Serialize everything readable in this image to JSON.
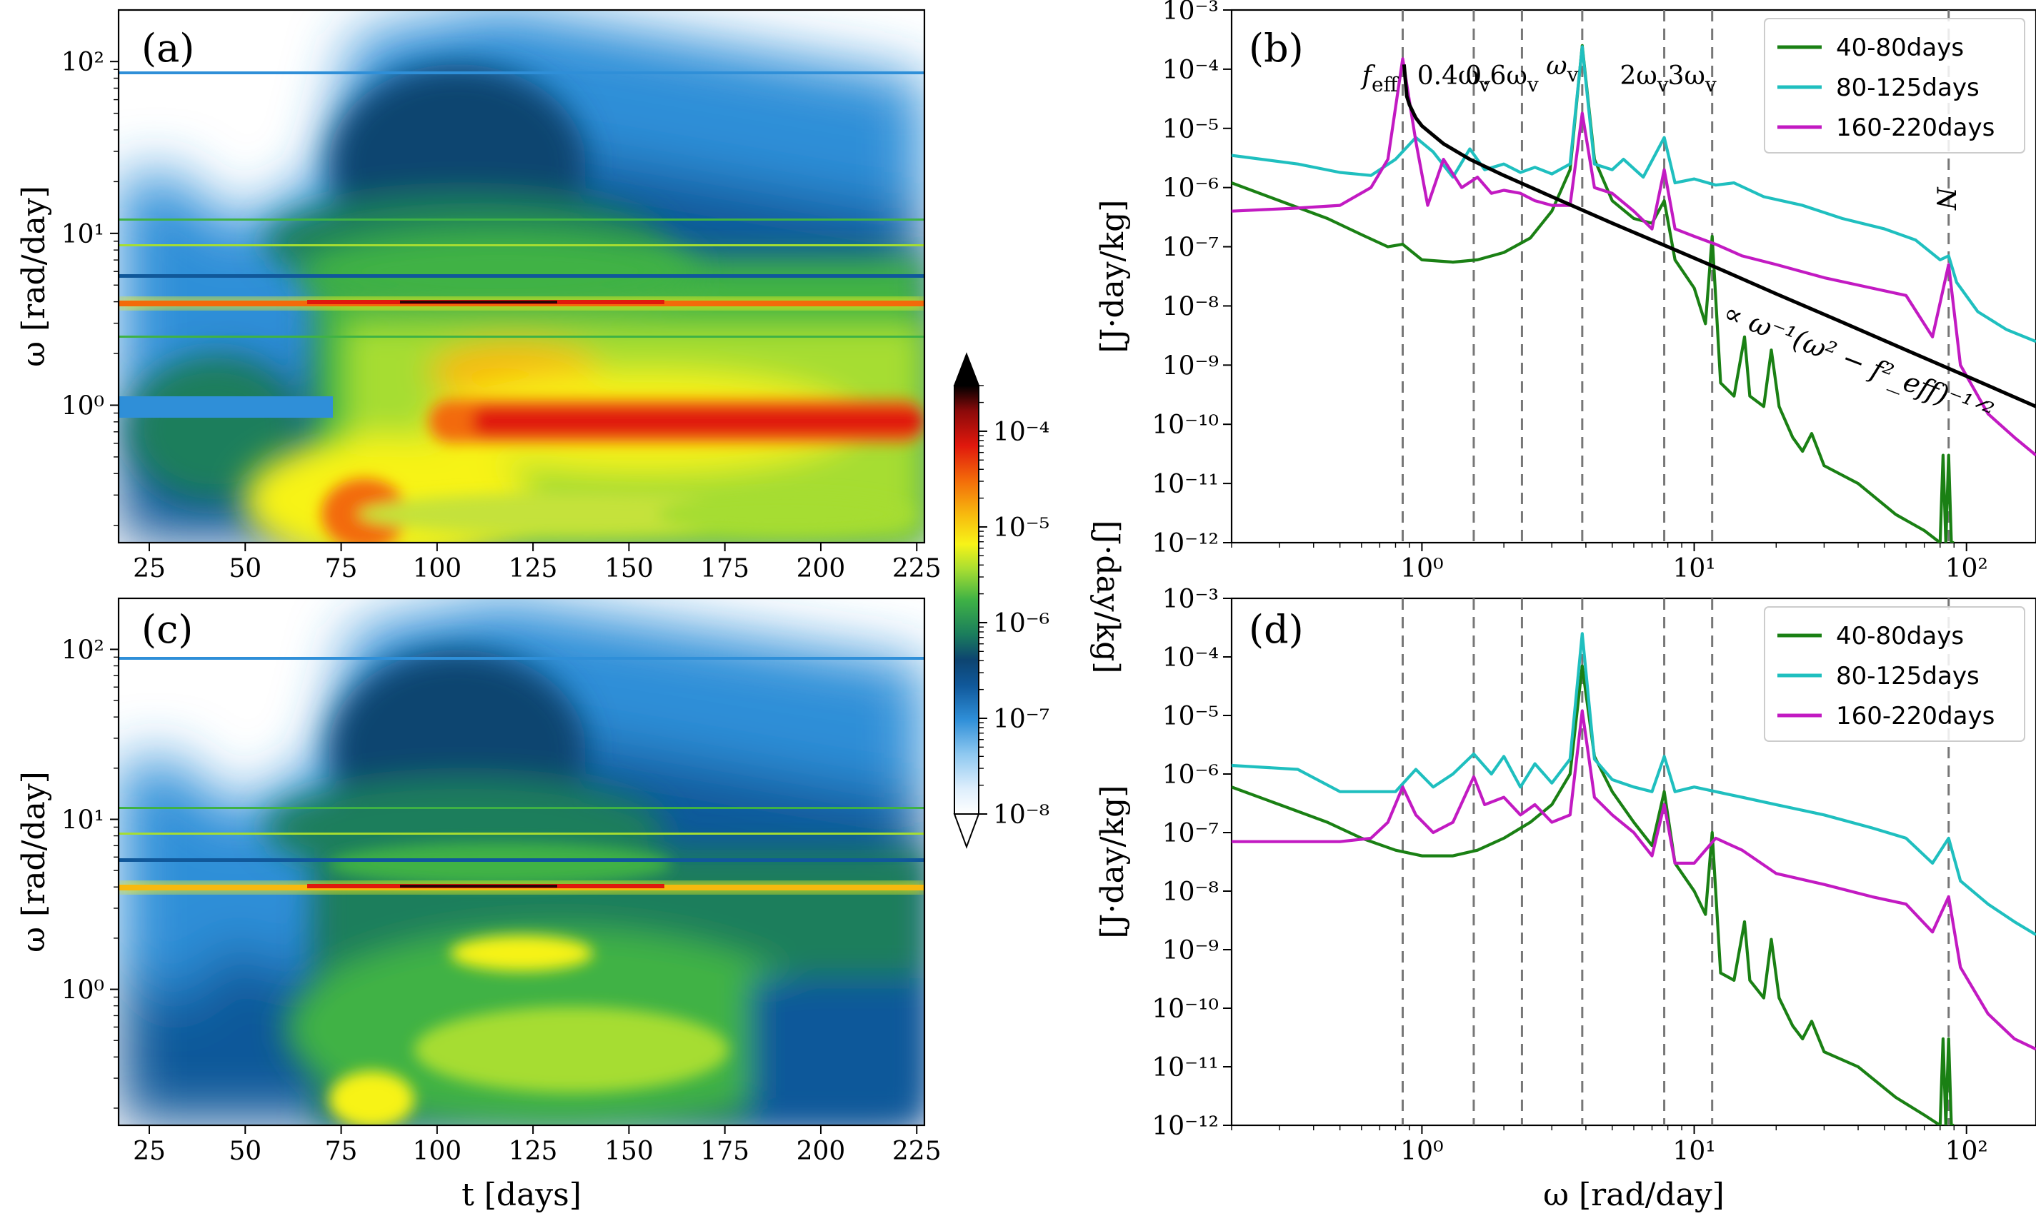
{
  "panel_labels": {
    "a": "(a)",
    "b": "(b)",
    "c": "(c)",
    "d": "(d)"
  },
  "colorbar": {
    "title": "[J·day/kg]",
    "tick_labels": [
      "10⁻⁸",
      "10⁻⁷",
      "10⁻⁶",
      "10⁻⁵",
      "10⁻⁴"
    ],
    "colors": [
      "#ffffff",
      "#ddeefc",
      "#8ec8f0",
      "#2f8fd8",
      "#10589a",
      "#0d4470",
      "#1b7e5c",
      "#3fb245",
      "#a6dd32",
      "#f7f318",
      "#f7b90e",
      "#f36a0a",
      "#e0180d",
      "#8c0a0a",
      "#000000"
    ]
  },
  "chart_data": [
    {
      "panel": "(a)",
      "type": "heatmap",
      "xlabel": "t [days]",
      "ylabel": "ω [rad/day]",
      "x_ticks": [
        "25",
        "50",
        "75",
        "100",
        "125",
        "150",
        "175",
        "200",
        "225"
      ],
      "y_ticks": [
        "10⁰",
        "10¹",
        "10²"
      ],
      "xlim": [
        17,
        227
      ],
      "ylim_log10": [
        -0.8,
        2.3
      ],
      "color_scale": "log",
      "clim": [
        1e-08,
        0.0003
      ]
    },
    {
      "panel": "(c)",
      "type": "heatmap",
      "xlabel": "t [days]",
      "ylabel": "ω [rad/day]",
      "x_ticks": [
        "25",
        "50",
        "75",
        "100",
        "125",
        "150",
        "175",
        "200",
        "225"
      ],
      "y_ticks": [
        "10⁰",
        "10¹",
        "10²"
      ],
      "xlim": [
        17,
        227
      ],
      "ylim_log10": [
        -0.8,
        2.3
      ],
      "color_scale": "log",
      "clim": [
        1e-08,
        0.0003
      ]
    },
    {
      "panel": "(b)",
      "type": "line",
      "xlabel": "",
      "ylabel": "[J·day/kg]",
      "x_scale": "log",
      "y_scale": "log",
      "xlim": [
        0.2,
        180
      ],
      "ylim": [
        1e-12,
        0.001
      ],
      "x_ticks": [
        "10⁰",
        "10¹",
        "10²"
      ],
      "y_ticks": [
        "10⁻¹²",
        "10⁻¹¹",
        "10⁻¹⁰",
        "10⁻⁹",
        "10⁻⁸",
        "10⁻⁷",
        "10⁻⁶",
        "10⁻⁵",
        "10⁻⁴",
        "10⁻³"
      ],
      "legend": "top-right",
      "vlines": [
        {
          "x": 0.85,
          "label": "f_eff"
        },
        {
          "x": 1.55,
          "label": "0.4ω_v"
        },
        {
          "x": 2.33,
          "label": "0.6ω_v"
        },
        {
          "x": 3.88,
          "label": "ω_v"
        },
        {
          "x": 7.76,
          "label": "2ω_v"
        },
        {
          "x": 11.64,
          "label": "3ω_v"
        },
        {
          "x": 86,
          "label": "N"
        }
      ],
      "annotation": "∝ ω⁻¹(ω² − f²_eff)⁻¹ᐟ²",
      "series": [
        {
          "name": "40-80days",
          "color": "#1a8014",
          "x": [
            0.2,
            0.3,
            0.45,
            0.6,
            0.75,
            0.85,
            1.0,
            1.3,
            1.6,
            2.0,
            2.5,
            3.0,
            3.5,
            3.88,
            4.3,
            5.0,
            6.0,
            7.0,
            7.76,
            8.5,
            10,
            11,
            11.64,
            12.5,
            14,
            15.3,
            16,
            18,
            19.2,
            20.5,
            23,
            25,
            27,
            30,
            40,
            55,
            70,
            80,
            82,
            84,
            86,
            88,
            90
          ],
          "y": [
            1.2e-06,
            6e-07,
            3e-07,
            1.6e-07,
            1e-07,
            1.1e-07,
            6e-08,
            5.5e-08,
            6e-08,
            8e-08,
            1.4e-07,
            4e-07,
            2e-06,
            0.00025,
            3e-06,
            6e-07,
            3e-07,
            2.5e-07,
            6e-07,
            6e-08,
            2e-08,
            5e-09,
            1.5e-07,
            5e-10,
            3e-10,
            3e-09,
            3e-10,
            2e-10,
            1.8e-09,
            2e-10,
            6e-11,
            3.5e-11,
            7e-11,
            2e-11,
            1e-11,
            3e-12,
            1.6e-12,
            1e-12,
            3e-11,
            1e-12,
            3e-11,
            1e-12,
            1e-12
          ]
        },
        {
          "name": "80-125days",
          "color": "#1fbfbf",
          "x": [
            0.2,
            0.35,
            0.5,
            0.65,
            0.8,
            0.95,
            1.1,
            1.3,
            1.5,
            1.7,
            2.0,
            2.3,
            2.6,
            3.0,
            3.5,
            3.88,
            4.3,
            5.0,
            5.5,
            6.5,
            7.76,
            8.5,
            10,
            12,
            14,
            18,
            25,
            35,
            50,
            65,
            80,
            86,
            92,
            110,
            140,
            180
          ],
          "y": [
            3.5e-06,
            2.5e-06,
            1.8e-06,
            1.6e-06,
            3e-06,
            7e-06,
            4e-06,
            1.5e-06,
            4.5e-06,
            2e-06,
            2.5e-06,
            1.8e-06,
            2.2e-06,
            1.7e-06,
            2.5e-06,
            0.00024,
            2.5e-06,
            2e-06,
            3e-06,
            1.5e-06,
            7e-06,
            1.2e-06,
            1.4e-06,
            1.1e-06,
            1.2e-06,
            7e-07,
            5e-07,
            3e-07,
            2e-07,
            1.3e-07,
            6e-08,
            7e-08,
            2.5e-08,
            8e-09,
            4e-09,
            2.5e-09
          ]
        },
        {
          "name": "160-220days",
          "color": "#c21ac2",
          "x": [
            0.2,
            0.35,
            0.5,
            0.65,
            0.75,
            0.85,
            0.95,
            1.05,
            1.2,
            1.4,
            1.6,
            1.8,
            2.0,
            2.3,
            2.6,
            3.0,
            3.5,
            3.88,
            4.3,
            5.0,
            6.0,
            7.0,
            7.76,
            8.5,
            10,
            12,
            15,
            20,
            30,
            45,
            60,
            75,
            86,
            95,
            120,
            150,
            180
          ],
          "y": [
            4e-07,
            4.5e-07,
            5e-07,
            1e-06,
            3e-06,
            0.00015,
            6e-06,
            5e-07,
            3e-06,
            1e-06,
            1.5e-06,
            8e-07,
            9e-07,
            8e-07,
            6e-07,
            5e-07,
            5e-07,
            1.8e-05,
            1e-06,
            8e-07,
            4e-07,
            2e-07,
            2e-06,
            2e-07,
            1.5e-07,
            1.1e-07,
            7e-08,
            5e-08,
            3e-08,
            2e-08,
            1.5e-08,
            3e-09,
            5e-08,
            1e-09,
            1.5e-10,
            6e-11,
            3e-11
          ]
        },
        {
          "name": "",
          "color": "#000000",
          "x": [
            0.86,
            0.88,
            0.9,
            0.95,
            1.0,
            1.2,
            1.5,
            2.0,
            3.0,
            5.0,
            8.0,
            12,
            20,
            35,
            60,
            100,
            180
          ],
          "y": [
            0.00012,
            3.5e-05,
            2.5e-05,
            1.5e-05,
            1.1e-05,
            5.5e-06,
            3e-06,
            1.6e-06,
            7e-07,
            2.5e-07,
            1e-07,
            4.5e-08,
            1.6e-08,
            5.3e-09,
            1.8e-09,
            6.5e-10,
            2e-10
          ]
        }
      ]
    },
    {
      "panel": "(d)",
      "type": "line",
      "xlabel": "ω [rad/day]",
      "ylabel": "[J·day/kg]",
      "x_scale": "log",
      "y_scale": "log",
      "xlim": [
        0.2,
        180
      ],
      "ylim": [
        1e-12,
        0.001
      ],
      "x_ticks": [
        "10⁰",
        "10¹",
        "10²"
      ],
      "y_ticks": [
        "10⁻¹²",
        "10⁻¹¹",
        "10⁻¹⁰",
        "10⁻⁹",
        "10⁻⁸",
        "10⁻⁷",
        "10⁻⁶",
        "10⁻⁵",
        "10⁻⁴",
        "10⁻³"
      ],
      "legend": "top-right",
      "vlines": [
        {
          "x": 0.85
        },
        {
          "x": 1.55
        },
        {
          "x": 2.33
        },
        {
          "x": 3.88
        },
        {
          "x": 7.76
        },
        {
          "x": 11.64
        },
        {
          "x": 86
        }
      ],
      "series": [
        {
          "name": "40-80days",
          "color": "#1a8014",
          "x": [
            0.2,
            0.3,
            0.45,
            0.6,
            0.8,
            1.0,
            1.3,
            1.6,
            2.0,
            2.5,
            3.0,
            3.5,
            3.88,
            4.3,
            5.0,
            6.0,
            7.0,
            7.76,
            8.5,
            10,
            11,
            11.64,
            12.5,
            14,
            15.3,
            16,
            18,
            19.2,
            20.5,
            23,
            25,
            27,
            30,
            40,
            55,
            70,
            80,
            82,
            84,
            86,
            88,
            90
          ],
          "y": [
            6e-07,
            3e-07,
            1.5e-07,
            8e-08,
            5e-08,
            4e-08,
            4e-08,
            5e-08,
            8e-08,
            1.5e-07,
            3e-07,
            1e-06,
            7e-05,
            2e-06,
            5e-07,
            1.5e-07,
            6e-08,
            5e-07,
            3e-08,
            1e-08,
            4e-09,
            1e-07,
            4e-10,
            3e-10,
            3e-09,
            3e-10,
            1.5e-10,
            1.5e-09,
            1.5e-10,
            5e-11,
            3e-11,
            6e-11,
            1.8e-11,
            1e-11,
            3e-12,
            1.5e-12,
            1e-12,
            3e-11,
            1e-12,
            3e-11,
            1e-12,
            1e-12
          ]
        },
        {
          "name": "80-125days",
          "color": "#1fbfbf",
          "x": [
            0.2,
            0.35,
            0.5,
            0.65,
            0.8,
            0.95,
            1.1,
            1.3,
            1.55,
            1.8,
            2.0,
            2.3,
            2.6,
            3.0,
            3.5,
            3.88,
            4.3,
            5.0,
            6.0,
            7.0,
            7.76,
            8.5,
            10,
            12,
            15,
            20,
            30,
            45,
            60,
            75,
            86,
            95,
            120,
            150,
            180
          ],
          "y": [
            1.4e-06,
            1.2e-06,
            5e-07,
            5e-07,
            5e-07,
            1.2e-06,
            6e-07,
            1e-06,
            2.2e-06,
            1e-06,
            2e-06,
            6e-07,
            1.5e-06,
            7e-07,
            1.8e-06,
            0.00025,
            1.8e-06,
            8e-07,
            6e-07,
            5e-07,
            2e-06,
            5e-07,
            6e-07,
            5e-07,
            4e-07,
            3e-07,
            2e-07,
            1.2e-07,
            8e-08,
            3e-08,
            8e-08,
            1.5e-08,
            6e-09,
            3e-09,
            1.8e-09
          ]
        },
        {
          "name": "160-220days",
          "color": "#c21ac2",
          "x": [
            0.2,
            0.35,
            0.5,
            0.65,
            0.75,
            0.85,
            0.95,
            1.1,
            1.3,
            1.55,
            1.7,
            2.0,
            2.3,
            2.6,
            3.0,
            3.5,
            3.88,
            4.3,
            5.0,
            6.0,
            7.0,
            7.76,
            8.5,
            10,
            12,
            15,
            20,
            30,
            45,
            60,
            75,
            86,
            95,
            120,
            150,
            180
          ],
          "y": [
            7e-08,
            7e-08,
            7e-08,
            8e-08,
            1.5e-07,
            6e-07,
            2e-07,
            1e-07,
            1.5e-07,
            9e-07,
            3e-07,
            4e-07,
            2e-07,
            3e-07,
            1.5e-07,
            2e-07,
            1.2e-05,
            4e-07,
            2e-07,
            1e-07,
            4e-08,
            3e-07,
            3e-08,
            3e-08,
            8e-08,
            5e-08,
            2e-08,
            1.3e-08,
            8e-09,
            6e-09,
            2e-09,
            8e-09,
            5e-10,
            8e-11,
            3e-11,
            2e-11
          ]
        }
      ]
    }
  ]
}
